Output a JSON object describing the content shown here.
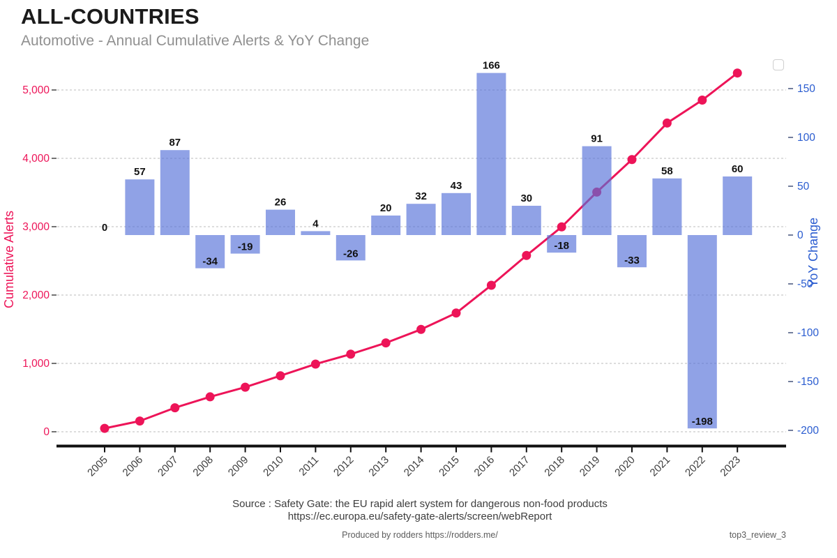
{
  "header": {
    "title": "ALL-COUNTRIES",
    "subtitle": "Automotive - Annual Cumulative Alerts & YoY Change"
  },
  "chart_data": {
    "type": "bar+line combo",
    "categories": [
      "2005",
      "2006",
      "2007",
      "2008",
      "2009",
      "2010",
      "2011",
      "2012",
      "2013",
      "2014",
      "2015",
      "2016",
      "2017",
      "2018",
      "2019",
      "2020",
      "2021",
      "2022",
      "2023"
    ],
    "series": [
      {
        "name": "Cumulative Alerts",
        "type": "line",
        "axis": "left",
        "color": "#ed1458",
        "values": [
          50,
          157,
          351,
          511,
          652,
          819,
          990,
          1135,
          1300,
          1497,
          1737,
          2143,
          2579,
          2997,
          3506,
          3982,
          4516,
          4852,
          5248
        ]
      },
      {
        "name": "YoY Change",
        "type": "bar",
        "axis": "right",
        "color": "#5470d8",
        "opacity": 0.65,
        "values": [
          0,
          57,
          87,
          -34,
          -19,
          26,
          4,
          -26,
          20,
          32,
          43,
          166,
          30,
          -18,
          91,
          -33,
          58,
          -198,
          60
        ]
      }
    ],
    "left_axis": {
      "label": "Cumulative Alerts",
      "color": "#ed1458",
      "min": 0,
      "max": 5000,
      "tick_step": 1000,
      "tick_labels": [
        "0",
        "1,000",
        "2,000",
        "3,000",
        "4,000",
        "5,000"
      ]
    },
    "right_axis": {
      "label": "YoY Change",
      "color": "#2a5cd0",
      "min": -200,
      "max": 150,
      "tick_step": 50,
      "tick_labels": [
        "-200",
        "-150",
        "-100",
        "-50",
        "0",
        "50",
        "100",
        "150"
      ]
    },
    "grid": {
      "horizontal_dashed_at_left_ticks": true,
      "color": "#bbbbbb"
    },
    "bar_label_color": "#111111",
    "x_label_color": "#3d3d3d",
    "x_label_rotation_deg": -45
  },
  "footer": {
    "source_line1": "Source : Safety Gate: the EU rapid alert system for dangerous non-food products",
    "source_line2": "https://ec.europa.eu/safety-gate-alerts/screen/webReport",
    "produced_by": "Produced by rodders https://rodders.me/",
    "tag": "top3_review_3"
  }
}
